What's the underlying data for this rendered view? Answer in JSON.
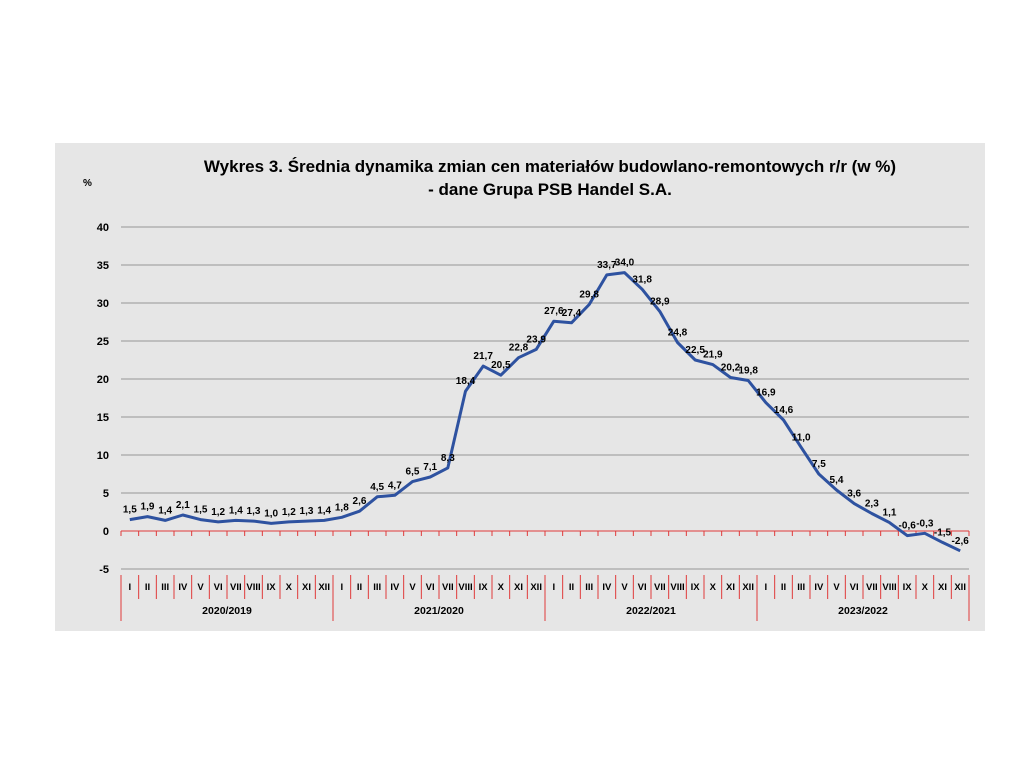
{
  "chart_data": {
    "type": "line",
    "title_line1": "Wykres 3. Średnia dynamika zmian cen materiałów budowlano-remontowych r/r (w %)",
    "title_line2": "- dane Grupa PSB Handel S.A.",
    "ylabel": "%",
    "ylim": [
      -5,
      40
    ],
    "yticks": [
      -5,
      0,
      5,
      10,
      15,
      20,
      25,
      30,
      35,
      40
    ],
    "grid": true,
    "months": [
      "I",
      "II",
      "III",
      "IV",
      "V",
      "VI",
      "VII",
      "VIII",
      "IX",
      "X",
      "XI",
      "XII"
    ],
    "year_groups": [
      "2020/2019",
      "2021/2020",
      "2022/2021",
      "2023/2022"
    ],
    "series": [
      {
        "values": [
          1.5,
          1.9,
          1.4,
          2.1,
          1.5,
          1.2,
          1.4,
          1.3,
          1.0,
          1.2,
          1.3,
          1.4,
          1.8,
          2.6,
          4.5,
          4.7,
          6.5,
          7.1,
          8.3,
          18.4,
          21.7,
          20.5,
          22.8,
          23.9,
          27.6,
          27.4,
          29.8,
          33.7,
          34.0,
          31.8,
          28.9,
          24.8,
          22.5,
          21.9,
          20.2,
          19.8,
          16.9,
          14.6,
          11.0,
          7.5,
          5.4,
          3.6,
          2.3,
          1.1,
          -0.6,
          -0.3,
          -1.5,
          -2.6
        ],
        "labels": [
          "1,5",
          "1,9",
          "1,4",
          "2,1",
          "1,5",
          "1,2",
          "1,4",
          "1,3",
          "1,0",
          "1,2",
          "1,3",
          "1,4",
          "1,8",
          "2,6",
          "4,5",
          "4,7",
          "6,5",
          "7,1",
          "8,3",
          "18,4",
          "21,7",
          "20,5",
          "22,8",
          "23,9",
          "27,6",
          "27,4",
          "29,8",
          "33,7",
          "34,0",
          "31,8",
          "28,9",
          "24,8",
          "22,5",
          "21,9",
          "20,2",
          "19,8",
          "16,9",
          "14,6",
          "11,0",
          "7,5",
          "5,4",
          "3,6",
          "2,3",
          "1,1",
          "-0,6",
          "-0,3",
          "-1,5",
          "-2,6"
        ],
        "color": "#2e52a0"
      }
    ]
  }
}
